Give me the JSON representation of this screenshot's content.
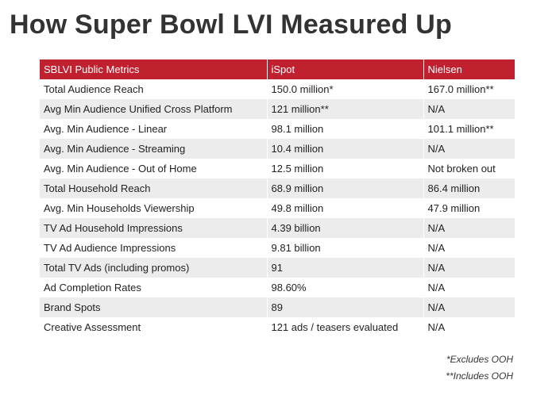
{
  "title": "How Super Bowl LVI Measured Up",
  "table": {
    "headers": [
      "SBLVI Public Metrics",
      "iSpot",
      "Nielsen"
    ],
    "rows": [
      [
        "Total Audience Reach",
        "150.0 million*",
        "167.0 million**"
      ],
      [
        "Avg Min Audience Unified Cross Platform",
        "121 million**",
        "N/A"
      ],
      [
        "Avg. Min Audience - Linear",
        "98.1 million",
        "101.1 million**"
      ],
      [
        "Avg. Min Audience - Streaming",
        "10.4 million",
        "N/A"
      ],
      [
        "Avg. Min Audience - Out of Home",
        "12.5 million",
        "Not broken out"
      ],
      [
        "Total Household Reach",
        "68.9 million",
        "86.4 million"
      ],
      [
        "Avg. Min Households Viewership",
        "49.8 million",
        "47.9 million"
      ],
      [
        "TV Ad Household Impressions",
        "4.39 billion",
        "N/A"
      ],
      [
        "TV Ad Audience Impressions",
        "9.81 billion",
        "N/A"
      ],
      [
        "Total TV Ads (including promos)",
        "91",
        "N/A"
      ],
      [
        "Ad Completion Rates",
        "98.60%",
        "N/A"
      ],
      [
        "Brand Spots",
        "89",
        "N/A"
      ],
      [
        "Creative Assessment",
        "121 ads / teasers evaluated",
        "N/A"
      ]
    ]
  },
  "footnotes": [
    "*Excludes OOH",
    "**Includes OOH"
  ],
  "colors": {
    "header_bg": "#c1202f",
    "stripe_bg": "#ececec",
    "title_text": "#333333"
  }
}
